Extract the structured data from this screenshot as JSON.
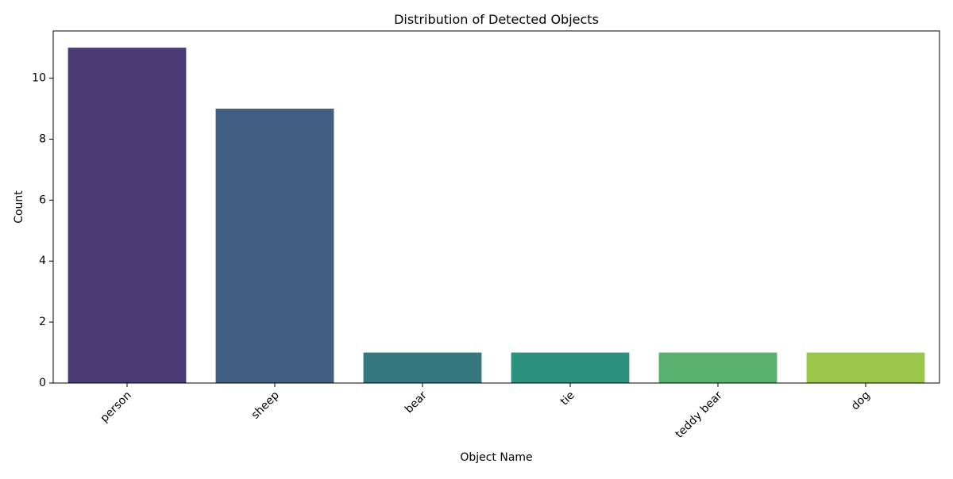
{
  "chart_data": {
    "type": "bar",
    "title": "Distribution of Detected Objects",
    "xlabel": "Object Name",
    "ylabel": "Count",
    "categories": [
      "person",
      "sheep",
      "bear",
      "tie",
      "teddy bear",
      "dog"
    ],
    "values": [
      11,
      9,
      1,
      1,
      1,
      1
    ],
    "colors": [
      "#4a3b76",
      "#415e82",
      "#35777f",
      "#2e907e",
      "#58b16f",
      "#9ac64b"
    ],
    "ylim": [
      0,
      11.55
    ],
    "yticks": [
      0,
      2,
      4,
      6,
      8,
      10
    ],
    "grid": false,
    "legend": "none"
  }
}
